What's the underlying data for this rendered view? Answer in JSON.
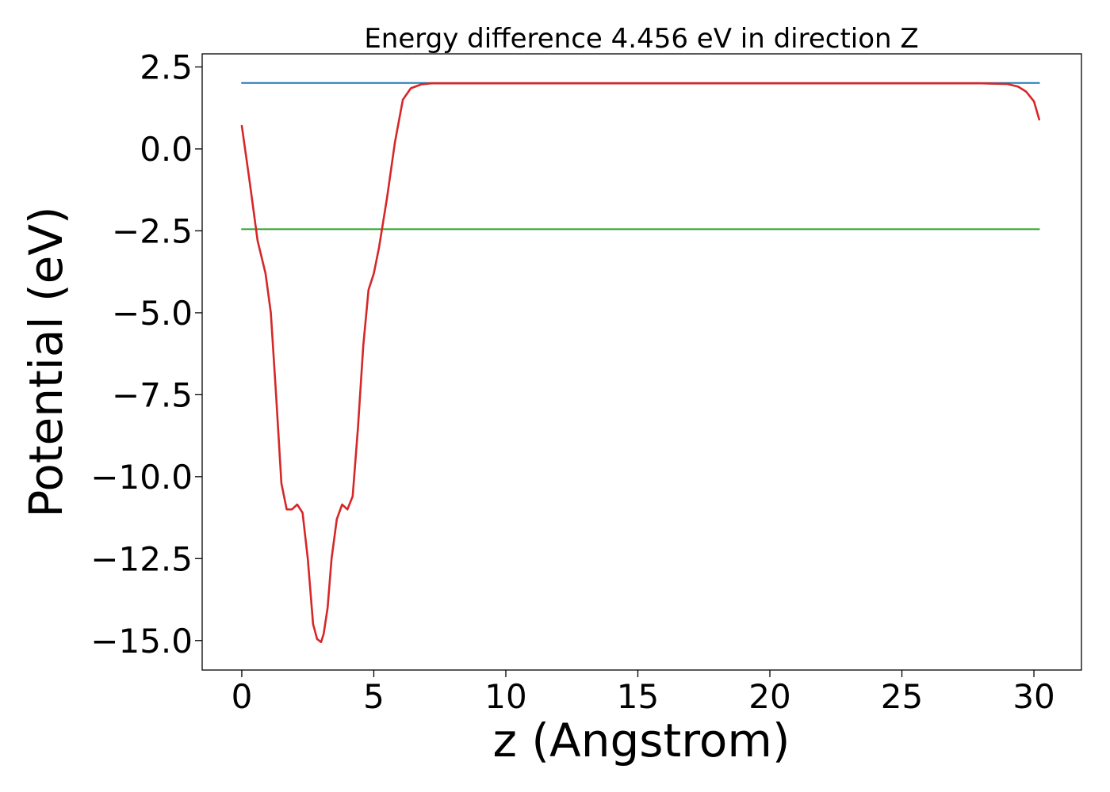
{
  "chart_data": {
    "type": "line",
    "title": "Energy difference 4.456 eV in direction Z",
    "xlabel": "z (Angstrom)",
    "ylabel": "Potential (eV)",
    "xlim": [
      -1.5,
      31.8
    ],
    "ylim": [
      -15.9,
      2.9
    ],
    "xticks": [
      0,
      5,
      10,
      15,
      20,
      25,
      30
    ],
    "xtick_labels": [
      "0",
      "5",
      "10",
      "15",
      "20",
      "25",
      "30"
    ],
    "yticks": [
      2.5,
      0.0,
      -2.5,
      -5.0,
      -7.5,
      -10.0,
      -12.5,
      -15.0
    ],
    "ytick_labels": [
      "2.5",
      "0.0",
      "−2.5",
      "−5.0",
      "−7.5",
      "−10.0",
      "−12.5",
      "−15.0"
    ],
    "grid": false,
    "series": [
      {
        "color": "#1f77b4",
        "x": [
          0,
          30.2
        ],
        "y": [
          2.01,
          2.01
        ]
      },
      {
        "color": "#2ca02c",
        "x": [
          0,
          30.2
        ],
        "y": [
          -2.45,
          -2.45
        ]
      },
      {
        "color": "#d62728",
        "x": [
          0,
          0.3,
          0.6,
          0.9,
          1.1,
          1.3,
          1.5,
          1.7,
          1.9,
          2.1,
          2.3,
          2.5,
          2.7,
          2.85,
          3.0,
          3.1,
          3.25,
          3.4,
          3.6,
          3.8,
          4.0,
          4.2,
          4.4,
          4.6,
          4.8,
          5.0,
          5.2,
          5.5,
          5.8,
          6.1,
          6.4,
          6.8,
          7.2,
          7.6,
          8.0,
          9.0,
          10.0,
          12.0,
          15.0,
          20.0,
          25.0,
          27.0,
          28.0,
          28.5,
          29.0,
          29.4,
          29.7,
          30.0,
          30.2
        ],
        "y": [
          0.7,
          -1.0,
          -2.8,
          -3.8,
          -5.0,
          -7.5,
          -10.2,
          -11.0,
          -11.0,
          -10.85,
          -11.1,
          -12.5,
          -14.5,
          -14.95,
          -15.05,
          -14.8,
          -14.0,
          -12.5,
          -11.3,
          -10.85,
          -11.0,
          -10.6,
          -8.5,
          -6.0,
          -4.3,
          -3.8,
          -3.0,
          -1.5,
          0.2,
          1.5,
          1.85,
          1.97,
          2.0,
          2.0,
          2.0,
          2.0,
          2.0,
          2.0,
          2.0,
          2.0,
          2.0,
          2.0,
          2.0,
          1.99,
          1.98,
          1.9,
          1.75,
          1.45,
          0.9
        ]
      }
    ]
  }
}
